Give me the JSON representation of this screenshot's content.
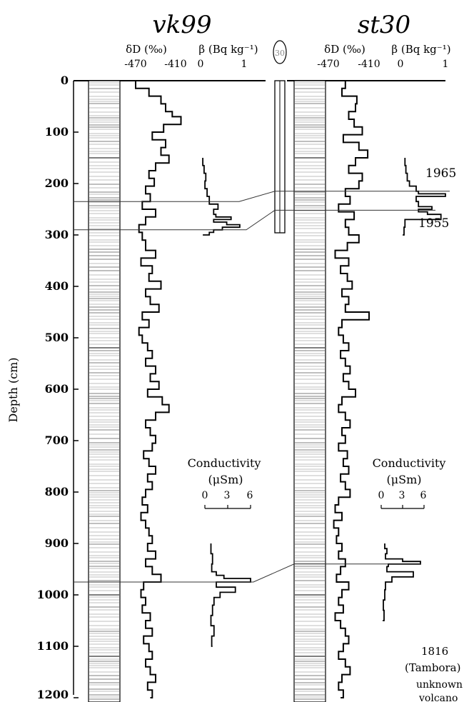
{
  "chart_data": {
    "type": "line",
    "xlabel": "",
    "ylabel": "Depth (cm)",
    "ylim": [
      0,
      1200
    ],
    "y_ticks": [
      "0",
      "100",
      "200",
      "300",
      "400",
      "500",
      "600",
      "700",
      "800",
      "900",
      "1000",
      "1100",
      "1200"
    ],
    "panels": [
      {
        "core": "vk99",
        "dD_label": "δD (‰)",
        "dD_ticks": [
          "-470",
          "-410"
        ],
        "beta_label": "β (Bq kg⁻¹)",
        "beta_ticks": [
          "0",
          "1"
        ],
        "dD_series": {
          "depth": [
            0,
            15,
            30,
            45,
            60,
            70,
            85,
            100,
            115,
            130,
            145,
            160,
            175,
            190,
            205,
            220,
            235,
            250,
            265,
            280,
            295,
            310,
            330,
            345,
            360,
            375,
            390,
            405,
            420,
            435,
            450,
            465,
            480,
            495,
            510,
            525,
            540,
            555,
            570,
            585,
            600,
            615,
            630,
            645,
            660,
            675,
            690,
            705,
            720,
            735,
            750,
            765,
            780,
            795,
            810,
            825,
            840,
            855,
            870,
            885,
            900,
            915,
            930,
            945,
            960,
            975,
            990,
            1005,
            1020,
            1035,
            1050,
            1065,
            1080,
            1095,
            1110,
            1125,
            1140,
            1155,
            1170,
            1185,
            1200
          ],
          "dD": [
            -470,
            -450,
            -432,
            -425,
            -415,
            -402,
            -428,
            -445,
            -425,
            -432,
            -420,
            -440,
            -450,
            -442,
            -455,
            -448,
            -460,
            -440,
            -455,
            -465,
            -460,
            -455,
            -440,
            -462,
            -445,
            -450,
            -432,
            -455,
            -448,
            -435,
            -460,
            -450,
            -465,
            -460,
            -452,
            -445,
            -455,
            -440,
            -448,
            -435,
            -452,
            -430,
            -420,
            -440,
            -455,
            -448,
            -440,
            -445,
            -458,
            -450,
            -440,
            -452,
            -445,
            -455,
            -460,
            -452,
            -462,
            -455,
            -450,
            -445,
            -452,
            -440,
            -455,
            -445,
            -432,
            -458,
            -462,
            -455,
            -460,
            -448,
            -455,
            -445,
            -458,
            -450,
            -445,
            -455,
            -448,
            -440,
            -452,
            -445,
            -448
          ]
        },
        "beta_series": {
          "depth": [
            150,
            165,
            180,
            195,
            210,
            225,
            240,
            250,
            260,
            265,
            270,
            275,
            280,
            285,
            290,
            295,
            300
          ],
          "beta": [
            0.05,
            0.08,
            0.12,
            0.1,
            0.15,
            0.2,
            0.4,
            0.3,
            0.35,
            0.7,
            0.3,
            0.6,
            0.9,
            0.5,
            0.3,
            0.2,
            0.05
          ]
        },
        "conductivity_label": "Conductivity",
        "conductivity_unit": "(μSm)",
        "conductivity_ticks": [
          "0",
          "3",
          "6"
        ],
        "conductivity_series": {
          "depth": [
            900,
            920,
            940,
            955,
            962,
            968,
            975,
            985,
            995,
            1005,
            1020,
            1040,
            1060,
            1080,
            1100
          ],
          "cond": [
            0.8,
            1.0,
            0.9,
            1.5,
            2.5,
            6.0,
            1.5,
            4.0,
            2.0,
            1.2,
            1.0,
            0.8,
            1.2,
            0.9,
            1.0
          ]
        }
      },
      {
        "core": "st30",
        "dD_label": "δD (‰)",
        "dD_ticks": [
          "-470",
          "-410"
        ],
        "beta_label": "β (Bq kg⁻¹)",
        "beta_ticks": [
          "0",
          "1"
        ],
        "dD_series": {
          "depth": [
            0,
            15,
            30,
            45,
            60,
            75,
            90,
            105,
            120,
            135,
            150,
            165,
            180,
            195,
            210,
            225,
            240,
            255,
            270,
            285,
            300,
            315,
            330,
            345,
            360,
            375,
            390,
            405,
            420,
            435,
            450,
            465,
            480,
            495,
            510,
            525,
            540,
            555,
            570,
            585,
            600,
            615,
            630,
            645,
            660,
            675,
            690,
            705,
            720,
            735,
            750,
            765,
            780,
            795,
            810,
            825,
            840,
            855,
            870,
            885,
            900,
            915,
            930,
            945,
            960,
            975,
            990,
            1005,
            1020,
            1035,
            1050,
            1065,
            1080,
            1095,
            1110,
            1125,
            1140,
            1155,
            1170,
            1185,
            1200
          ],
          "dD": [
            -445,
            -450,
            -428,
            -430,
            -440,
            -432,
            -420,
            -448,
            -425,
            -412,
            -430,
            -440,
            -420,
            -425,
            -445,
            -438,
            -455,
            -432,
            -445,
            -440,
            -425,
            -442,
            -460,
            -440,
            -452,
            -442,
            -435,
            -450,
            -440,
            -445,
            -410,
            -450,
            -455,
            -448,
            -440,
            -452,
            -445,
            -438,
            -448,
            -440,
            -430,
            -450,
            -455,
            -445,
            -438,
            -450,
            -445,
            -455,
            -442,
            -448,
            -440,
            -452,
            -445,
            -438,
            -455,
            -460,
            -450,
            -462,
            -455,
            -458,
            -450,
            -455,
            -445,
            -452,
            -458,
            -440,
            -450,
            -455,
            -448,
            -460,
            -452,
            -445,
            -440,
            -448,
            -455,
            -445,
            -438,
            -450,
            -455,
            -448,
            -452
          ]
        },
        "beta_series": {
          "depth": [
            150,
            165,
            180,
            195,
            205,
            215,
            220,
            225,
            235,
            245,
            250,
            255,
            260,
            270,
            285,
            300
          ],
          "beta": [
            0.1,
            0.12,
            0.15,
            0.2,
            0.35,
            0.4,
            1.0,
            0.35,
            0.4,
            0.7,
            0.4,
            0.6,
            0.9,
            0.1,
            0.08,
            0.05
          ]
        },
        "conductivity_label": "Conductivity",
        "conductivity_unit": "(μSm)",
        "conductivity_ticks": [
          "0",
          "3",
          "6"
        ],
        "conductivity_series": {
          "depth": [
            900,
            910,
            920,
            930,
            935,
            940,
            945,
            955,
            965,
            975,
            990,
            1010,
            1030,
            1050
          ],
          "cond": [
            0.5,
            0.8,
            0.6,
            3.0,
            5.5,
            1.0,
            0.8,
            4.5,
            1.5,
            0.6,
            0.5,
            0.3,
            0.4,
            0.2
          ]
        }
      }
    ],
    "annotations": [
      "1965",
      "1955",
      "1816",
      "(Tambora)",
      "unknown",
      "volcano"
    ],
    "scale_marker": "30"
  }
}
